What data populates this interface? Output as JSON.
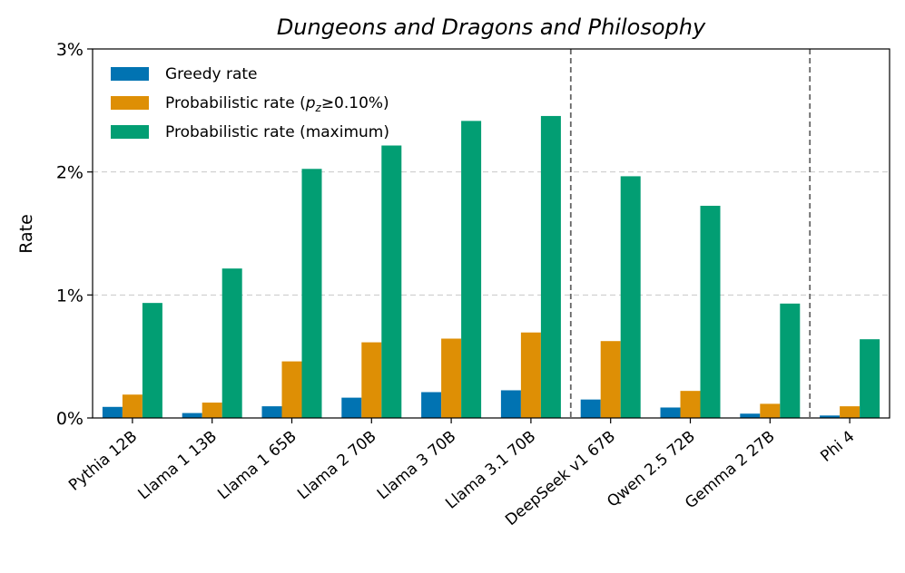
{
  "chart_data": {
    "type": "bar",
    "title": "Dungeons and Dragons and Philosophy",
    "xlabel": "",
    "ylabel": "Rate",
    "ylim": [
      0,
      3
    ],
    "yticks": [
      0,
      1,
      2,
      3
    ],
    "ytick_labels": [
      "0%",
      "1%",
      "2%",
      "3%"
    ],
    "grid": "horizontal dashed",
    "legend_position": "top-left",
    "categories": [
      "Pythia 12B",
      "Llama 1 13B",
      "Llama 1 65B",
      "Llama 2 70B",
      "Llama 3 70B",
      "Llama 3.1 70B",
      "DeepSeek v1 67B",
      "Qwen 2.5 72B",
      "Gemma 2 27B",
      "Phi 4"
    ],
    "group_separators_after": [
      5,
      8
    ],
    "series": [
      {
        "name": "Greedy rate",
        "legend_main": "Greedy rate",
        "legend_sub": "",
        "legend_rest": "",
        "color": "#0173b2",
        "values": [
          0.09,
          0.04,
          0.095,
          0.165,
          0.21,
          0.225,
          0.15,
          0.085,
          0.035,
          0.02
        ]
      },
      {
        "name": "Probabilistic rate (p_z≥0.10%)",
        "legend_main": "Probabilistic rate (",
        "legend_sub": "z",
        "legend_rest": "≥0.10%)",
        "color": "#de8f05",
        "values": [
          0.19,
          0.125,
          0.46,
          0.615,
          0.645,
          0.695,
          0.625,
          0.22,
          0.115,
          0.095
        ]
      },
      {
        "name": "Probabilistic rate (maximum)",
        "legend_main": "Probabilistic rate (maximum)",
        "legend_sub": "",
        "legend_rest": "",
        "color": "#029e73",
        "values": [
          0.935,
          1.215,
          2.025,
          2.215,
          2.415,
          2.455,
          1.965,
          1.725,
          0.93,
          0.64
        ]
      }
    ]
  }
}
